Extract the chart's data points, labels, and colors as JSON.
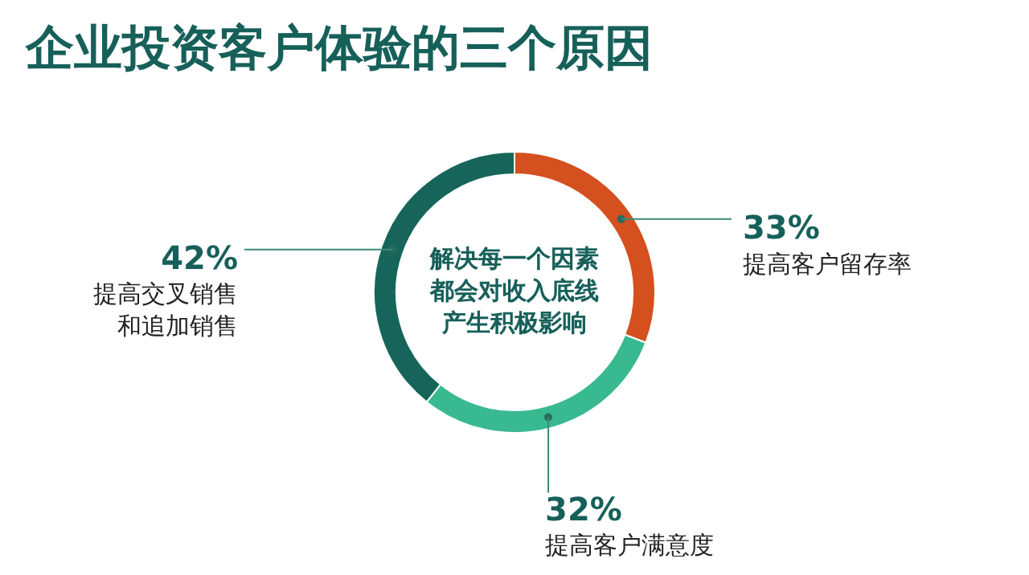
{
  "chart_data": {
    "type": "donut",
    "title": "企业投资客户体验的三个原因",
    "categories": [
      "提高客户留存率",
      "提高客户满意度",
      "提高交叉销售和追加销售"
    ],
    "values": [
      33,
      32,
      42
    ],
    "value_labels": [
      "33%",
      "32%",
      "42%"
    ],
    "colors": [
      "#d4501e",
      "#38b98f",
      "#17655a"
    ],
    "annotations": [
      "解决每一个因素都会对收入底线产生积极影响"
    ],
    "legend": false
  }
}
